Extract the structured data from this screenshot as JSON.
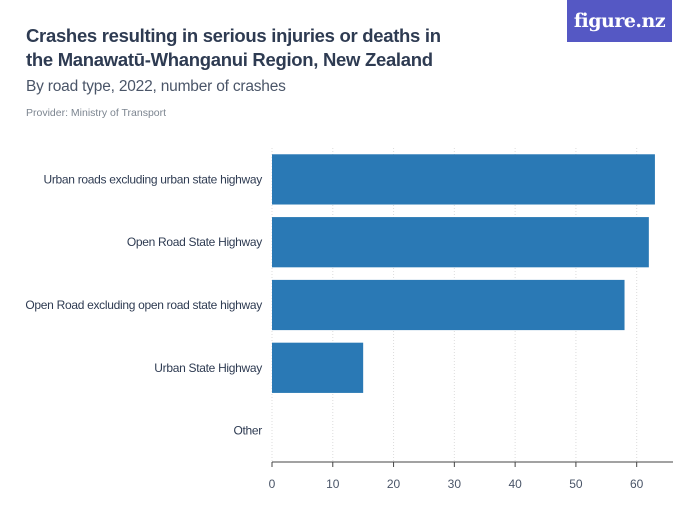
{
  "title": "Crashes resulting in serious injuries or deaths in the Manawatū-Whanganui Region, New Zealand",
  "subtitle": "By road type, 2022, number of crashes",
  "provider": "Provider: Ministry of Transport",
  "logo_text": "figure.nz",
  "colors": {
    "bar": "#2a79b5",
    "grid": "#dcdcdc",
    "axis": "#444444"
  },
  "chart_data": {
    "type": "bar",
    "orientation": "horizontal",
    "categories": [
      "Urban roads excluding urban state highway",
      "Open Road State Highway",
      "Open Road excluding open road state highway",
      "Urban State Highway",
      "Other"
    ],
    "values": [
      63,
      62,
      58,
      15,
      0
    ],
    "xticks": [
      0,
      10,
      20,
      30,
      40,
      50,
      60
    ],
    "xlim": [
      0,
      64
    ],
    "grid": true,
    "xlabel": "",
    "ylabel": ""
  }
}
